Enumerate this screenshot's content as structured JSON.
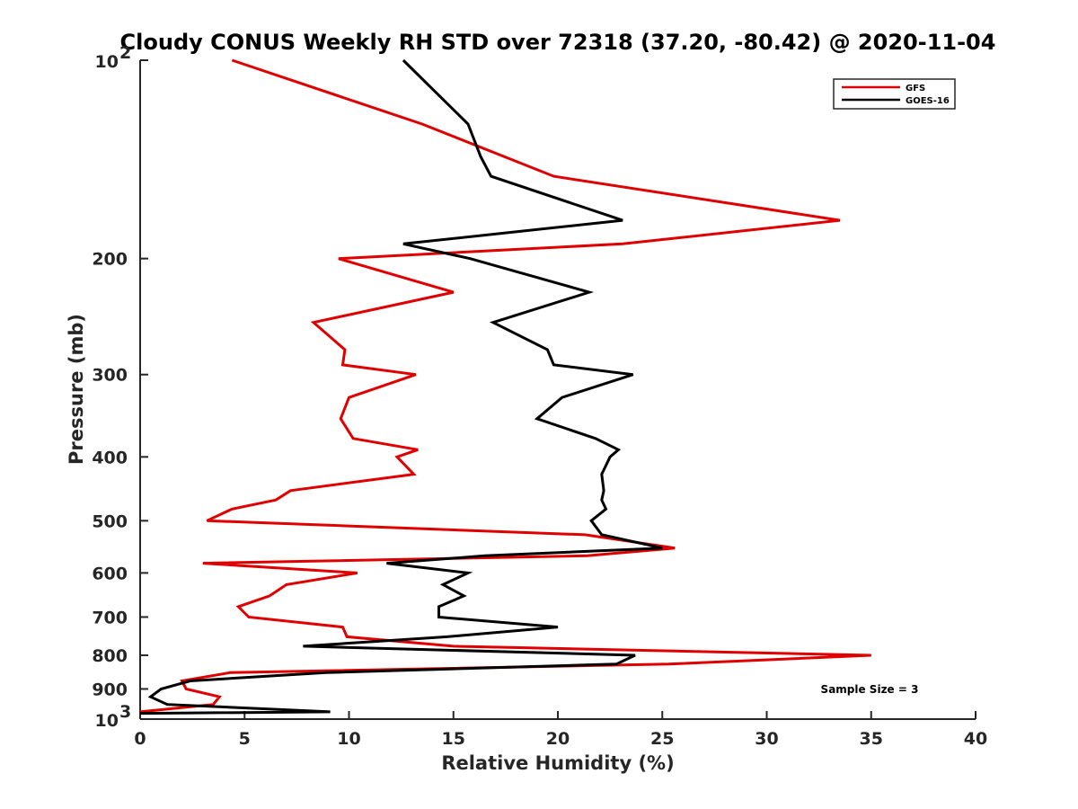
{
  "chart_data": {
    "type": "line",
    "title": "Cloudy CONUS Weekly RH STD over 72318 (37.20, -80.42) @ 2020-11-04",
    "xlabel": "Relative Humidity (%)",
    "ylabel": "Pressure (mb)",
    "xlim": [
      0,
      40
    ],
    "ylim": [
      100,
      1000
    ],
    "yscale": "log",
    "y_reversed": true,
    "grid": false,
    "x_ticks": [
      {
        "value": 0,
        "label": "0"
      },
      {
        "value": 5,
        "label": "5"
      },
      {
        "value": 10,
        "label": "10"
      },
      {
        "value": 15,
        "label": "15"
      },
      {
        "value": 20,
        "label": "20"
      },
      {
        "value": 25,
        "label": "25"
      },
      {
        "value": 30,
        "label": "30"
      },
      {
        "value": 35,
        "label": "35"
      },
      {
        "value": 40,
        "label": "40"
      }
    ],
    "y_ticks": [
      {
        "value": 100,
        "label": "",
        "base": "10",
        "exp": "2"
      },
      {
        "value": 200,
        "label": "200"
      },
      {
        "value": 300,
        "label": "300"
      },
      {
        "value": 400,
        "label": "400"
      },
      {
        "value": 500,
        "label": "500"
      },
      {
        "value": 600,
        "label": "600"
      },
      {
        "value": 700,
        "label": "700"
      },
      {
        "value": 800,
        "label": "800"
      },
      {
        "value": 900,
        "label": "900"
      },
      {
        "value": 1000,
        "label": "",
        "base": "10",
        "exp": "3"
      }
    ],
    "legend_position": "top-right",
    "series": [
      {
        "name": "GFS",
        "color": "#e00000",
        "points": [
          [
            4.4,
            100
          ],
          [
            13.5,
            125
          ],
          [
            19.8,
            150
          ],
          [
            33.5,
            175
          ],
          [
            23.1,
            190
          ],
          [
            9.5,
            200
          ],
          [
            15.0,
            225
          ],
          [
            8.3,
            250
          ],
          [
            9.8,
            275
          ],
          [
            9.7,
            290
          ],
          [
            13.2,
            300
          ],
          [
            10.0,
            325
          ],
          [
            9.6,
            350
          ],
          [
            10.2,
            375
          ],
          [
            13.3,
            390
          ],
          [
            12.3,
            400
          ],
          [
            13.1,
            425
          ],
          [
            7.2,
            450
          ],
          [
            6.5,
            465
          ],
          [
            4.4,
            480
          ],
          [
            3.2,
            500
          ],
          [
            21.3,
            525
          ],
          [
            25.6,
            550
          ],
          [
            21.4,
            565
          ],
          [
            3.0,
            580
          ],
          [
            10.4,
            600
          ],
          [
            7.0,
            625
          ],
          [
            6.2,
            650
          ],
          [
            4.7,
            675
          ],
          [
            5.2,
            700
          ],
          [
            9.7,
            725
          ],
          [
            9.9,
            750
          ],
          [
            15.0,
            775
          ],
          [
            35.0,
            800
          ],
          [
            25.3,
            825
          ],
          [
            4.3,
            850
          ],
          [
            2.0,
            875
          ],
          [
            2.2,
            900
          ],
          [
            3.8,
            925
          ],
          [
            3.5,
            950
          ],
          [
            0.0,
            975
          ]
        ]
      },
      {
        "name": "GOES-16",
        "color": "#000000",
        "points": [
          [
            12.6,
            100
          ],
          [
            15.7,
            125
          ],
          [
            16.3,
            140
          ],
          [
            16.8,
            150
          ],
          [
            23.1,
            175
          ],
          [
            12.6,
            190
          ],
          [
            15.8,
            200
          ],
          [
            21.5,
            225
          ],
          [
            16.9,
            250
          ],
          [
            19.5,
            275
          ],
          [
            19.8,
            290
          ],
          [
            23.6,
            300
          ],
          [
            20.2,
            325
          ],
          [
            19.0,
            350
          ],
          [
            21.8,
            375
          ],
          [
            22.9,
            390
          ],
          [
            22.5,
            400
          ],
          [
            22.1,
            425
          ],
          [
            22.2,
            450
          ],
          [
            22.1,
            465
          ],
          [
            22.3,
            480
          ],
          [
            21.6,
            500
          ],
          [
            22.1,
            525
          ],
          [
            25.0,
            550
          ],
          [
            16.5,
            565
          ],
          [
            11.8,
            580
          ],
          [
            15.7,
            600
          ],
          [
            14.5,
            625
          ],
          [
            15.5,
            650
          ],
          [
            14.3,
            675
          ],
          [
            14.3,
            700
          ],
          [
            20.0,
            725
          ],
          [
            14.7,
            750
          ],
          [
            7.8,
            775
          ],
          [
            23.7,
            800
          ],
          [
            22.8,
            825
          ],
          [
            8.9,
            850
          ],
          [
            2.4,
            875
          ],
          [
            1.0,
            900
          ],
          [
            0.5,
            925
          ],
          [
            1.3,
            950
          ],
          [
            9.1,
            975
          ],
          [
            0.0,
            980
          ]
        ]
      }
    ],
    "annotations": [
      "Sample Size = 3"
    ]
  }
}
